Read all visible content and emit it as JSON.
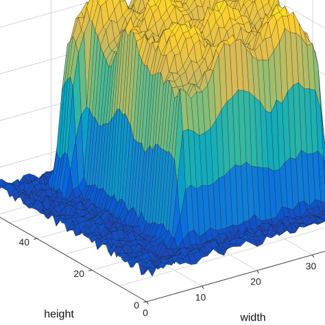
{
  "chart_data": {
    "type": "surface",
    "title": "",
    "xlabel": "width",
    "ylabel": "height",
    "zlabel": "",
    "xlim": [
      0,
      40
    ],
    "ylim": [
      0,
      55
    ],
    "x_ticks": [
      "0",
      "10",
      "20",
      "30"
    ],
    "y_ticks": [
      "0",
      "20",
      "40"
    ],
    "grid": true,
    "colormap": "parula",
    "colors": [
      "#352a87",
      "#0363e1",
      "#1485d4",
      "#06a7c6",
      "#38b99e",
      "#92bf73",
      "#d9ba56",
      "#fcce2e",
      "#f9fb0e"
    ],
    "z_description": {
      "background_level": 0.1,
      "plateau_level": 0.85,
      "peak_level": 1.0
    }
  }
}
